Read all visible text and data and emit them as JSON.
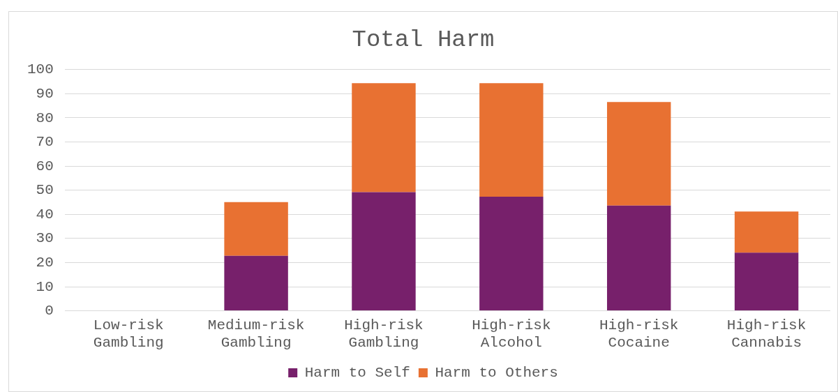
{
  "chart_data": {
    "type": "bar",
    "title": "Total Harm",
    "stacked": true,
    "categories": [
      "Low-risk Gambling",
      "Medium-risk Gambling",
      "High-risk Gambling",
      "High-risk Alcohol",
      "High-risk Cocaine",
      "High-risk Cannabis"
    ],
    "series": [
      {
        "name": "Harm to Self",
        "color": "#77206b",
        "values": [
          0,
          22.8,
          49.2,
          47.3,
          43.6,
          24.1
        ]
      },
      {
        "name": "Harm to Others",
        "color": "#e87132",
        "values": [
          0,
          22.3,
          45.2,
          47.1,
          43.0,
          17.1
        ]
      }
    ],
    "ylim": [
      0,
      100
    ],
    "yticks": [
      0,
      10,
      20,
      30,
      40,
      50,
      60,
      70,
      80,
      90,
      100
    ],
    "grid": "y",
    "legend": "bottom"
  }
}
